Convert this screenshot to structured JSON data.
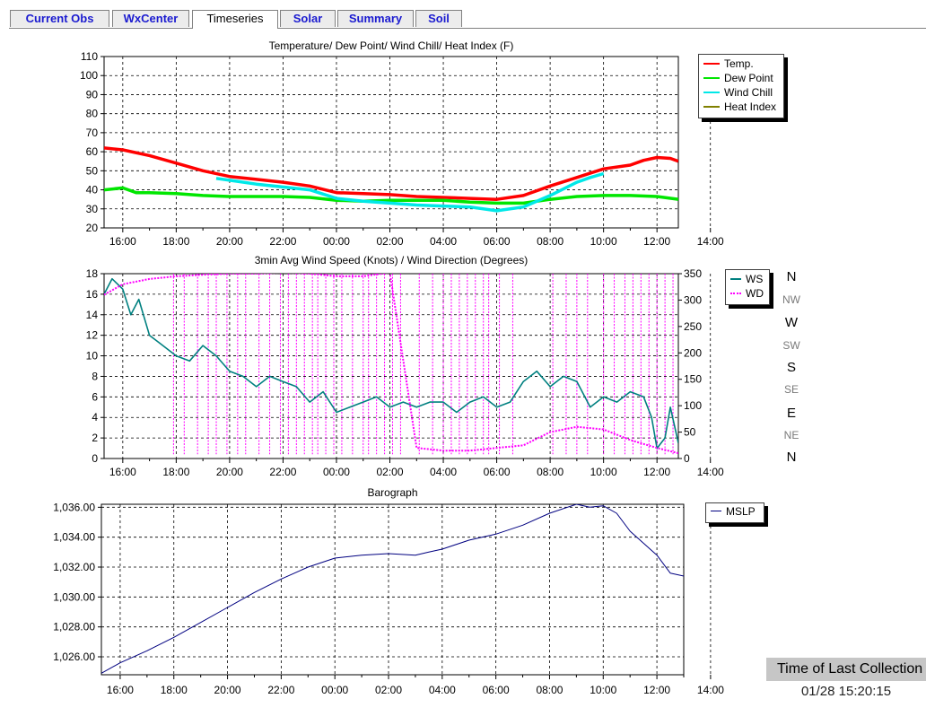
{
  "tabs": [
    {
      "label": "Current Obs",
      "active": false
    },
    {
      "label": "WxCenter",
      "active": false
    },
    {
      "label": "Timeseries",
      "active": true
    },
    {
      "label": "Solar",
      "active": false
    },
    {
      "label": "Summary",
      "active": false
    },
    {
      "label": "Soil",
      "active": false
    }
  ],
  "colors": {
    "temp": "#ff0000",
    "dew": "#00e600",
    "chill": "#00e8e8",
    "heat": "#808000",
    "ws": "#008080",
    "wd": "#ff00ff",
    "mslp": "#000080"
  },
  "compass": {
    "labels": [
      "N",
      "NW",
      "W",
      "SW",
      "S",
      "SE",
      "E",
      "NE",
      "N"
    ]
  },
  "status": {
    "title": "Time of Last Collection",
    "time": "01/28 15:20:15"
  },
  "chart_data": [
    {
      "type": "line",
      "title": "Temperature/ Dew Point/ Wind Chill/ Heat Index (F)",
      "xlabel": "",
      "ylabel": "",
      "xticks": [
        "16:00",
        "18:00",
        "20:00",
        "22:00",
        "00:00",
        "02:00",
        "04:00",
        "06:00",
        "08:00",
        "10:00",
        "12:00",
        "14:00"
      ],
      "x_hours": [
        15.3,
        36.8
      ],
      "ylim": [
        20,
        110
      ],
      "yticks": [
        20,
        30,
        40,
        50,
        60,
        70,
        80,
        90,
        100,
        110
      ],
      "grid": true,
      "legend_position": "right",
      "series": [
        {
          "name": "Temp.",
          "color_key": "temp",
          "x": [
            15.3,
            16,
            17,
            18,
            19,
            20,
            21,
            22,
            23,
            24,
            25,
            26,
            27,
            28,
            29,
            30,
            31,
            32,
            33,
            34,
            35,
            35.5,
            36,
            36.5,
            36.8
          ],
          "y": [
            62,
            61,
            58,
            54,
            50,
            47,
            45.5,
            44,
            42,
            38.5,
            38,
            37.5,
            36.5,
            36,
            35.5,
            35,
            37,
            42,
            46.5,
            51,
            53,
            55.5,
            57,
            56.5,
            55
          ]
        },
        {
          "name": "Dew Point",
          "color_key": "dew",
          "x": [
            15.3,
            16,
            16.5,
            17,
            18,
            19,
            20,
            21,
            22,
            23,
            24,
            25,
            26,
            27,
            28,
            29,
            30,
            31,
            32,
            33,
            34,
            35,
            36,
            36.8
          ],
          "y": [
            40,
            41,
            38.5,
            38.5,
            38,
            37,
            36.5,
            36.5,
            36.5,
            36,
            34.5,
            34,
            34.5,
            34.5,
            34.5,
            33.5,
            33,
            33,
            35,
            36.5,
            37,
            37,
            36.5,
            35
          ]
        },
        {
          "name": "Wind Chill",
          "color_key": "chill",
          "x": [
            19.5,
            20,
            21,
            22,
            23,
            24,
            25,
            26,
            27,
            28,
            29,
            30,
            31,
            32,
            33,
            33.5,
            34
          ],
          "y": [
            46,
            45,
            43,
            41.5,
            40,
            35.5,
            34,
            33,
            32,
            31.5,
            31,
            29,
            31,
            37,
            44,
            46.5,
            48.5
          ]
        },
        {
          "name": "Heat Index",
          "color_key": "heat",
          "x": [],
          "y": []
        }
      ]
    },
    {
      "type": "line",
      "title": "3min Avg Wind Speed (Knots) / Wind Direction (Degrees)",
      "xticks": [
        "16:00",
        "18:00",
        "20:00",
        "22:00",
        "00:00",
        "02:00",
        "04:00",
        "06:00",
        "08:00",
        "10:00",
        "12:00",
        "14:00"
      ],
      "x_hours": [
        15.3,
        36.8
      ],
      "ylim": [
        0,
        18
      ],
      "yticks": [
        0,
        2,
        4,
        6,
        8,
        10,
        12,
        14,
        16,
        18
      ],
      "y2lim": [
        0,
        350
      ],
      "y2ticks": [
        0,
        50,
        100,
        150,
        200,
        250,
        300,
        350
      ],
      "grid": true,
      "legend_position": "right",
      "series": [
        {
          "name": "WS",
          "axis": "left",
          "color_key": "ws",
          "x": [
            15.3,
            15.6,
            16,
            16.3,
            16.6,
            17,
            17.5,
            18,
            18.5,
            19,
            19.5,
            20,
            20.5,
            21,
            21.5,
            22,
            22.5,
            23,
            23.5,
            24,
            24.5,
            25,
            25.5,
            26,
            26.5,
            27,
            27.5,
            28,
            28.5,
            29,
            29.5,
            30,
            30.5,
            31,
            31.5,
            32,
            32.5,
            33,
            33.5,
            34,
            34.5,
            35,
            35.5,
            35.8,
            36,
            36.3,
            36.5,
            36.8
          ],
          "y": [
            16,
            17.5,
            16.5,
            14,
            15.5,
            12,
            11,
            10,
            9.5,
            11,
            10,
            8.5,
            8,
            7,
            8,
            7.5,
            7,
            5.5,
            6.5,
            4.5,
            5,
            5.5,
            6,
            5,
            5.5,
            5,
            5.5,
            5.5,
            4.5,
            5.5,
            6,
            5,
            5.5,
            7.5,
            8.5,
            7,
            8,
            7.5,
            5,
            6,
            5.5,
            6.5,
            6,
            4,
            1,
            2,
            5,
            1.5
          ]
        },
        {
          "name": "WD",
          "axis": "right",
          "color_key": "wd",
          "x": [
            15.3,
            16,
            17,
            18,
            19,
            20,
            21,
            22,
            23,
            24,
            25,
            26,
            27,
            28,
            29,
            30,
            31,
            32,
            33,
            34,
            35,
            36,
            36.8
          ],
          "y": [
            310,
            330,
            340,
            345,
            348,
            350,
            350,
            352,
            350,
            345,
            345,
            352,
            20,
            15,
            15,
            20,
            25,
            50,
            60,
            55,
            35,
            20,
            10
          ]
        }
      ],
      "wd_jump_hours": [
        17.9,
        18.3,
        18.8,
        19.2,
        19.5,
        19.9,
        20.3,
        20.6,
        21.1,
        21.5,
        21.9,
        22.2,
        22.5,
        22.8,
        23.1,
        23.3,
        23.6,
        23.9,
        24.2,
        24.6,
        25.0,
        25.2,
        25.5,
        25.8,
        26.1,
        26.4,
        27.1,
        27.6,
        28.0,
        28.3,
        28.6,
        28.9,
        29.2,
        29.5,
        29.7,
        30.1,
        30.6,
        32.1,
        32.6,
        33.0,
        33.4,
        34.0,
        34.4,
        34.8,
        35.1,
        35.4,
        35.7,
        36.0,
        36.3,
        36.6
      ]
    },
    {
      "type": "line",
      "title": "Barograph",
      "xticks": [
        "16:00",
        "18:00",
        "20:00",
        "22:00",
        "00:00",
        "02:00",
        "04:00",
        "06:00",
        "08:00",
        "10:00",
        "12:00",
        "14:00"
      ],
      "x_hours": [
        15.3,
        37.0
      ],
      "ylim": [
        1024.8,
        1036.2
      ],
      "yticks": [
        1026,
        1028,
        1030,
        1032,
        1034,
        1036
      ],
      "ytick_labels": [
        "1,026.00",
        "1,028.00",
        "1,030.00",
        "1,032.00",
        "1,034.00",
        "1,036.00"
      ],
      "grid": true,
      "legend_position": "right",
      "series": [
        {
          "name": "MSLP",
          "color_key": "mslp",
          "x": [
            15.3,
            16,
            17,
            18,
            19,
            20,
            21,
            22,
            22.5,
            23,
            24,
            25,
            26,
            27,
            27.5,
            28,
            29,
            30,
            31,
            32,
            33,
            33.5,
            34,
            34.5,
            35,
            36,
            36.5,
            37.0
          ],
          "y": [
            1024.9,
            1025.6,
            1026.4,
            1027.3,
            1028.3,
            1029.3,
            1030.3,
            1031.2,
            1031.6,
            1032.0,
            1032.6,
            1032.8,
            1032.9,
            1032.8,
            1033.0,
            1033.2,
            1033.8,
            1034.2,
            1034.8,
            1035.6,
            1036.2,
            1036.0,
            1036.1,
            1035.6,
            1034.4,
            1032.8,
            1031.6,
            1031.4
          ]
        }
      ]
    }
  ]
}
